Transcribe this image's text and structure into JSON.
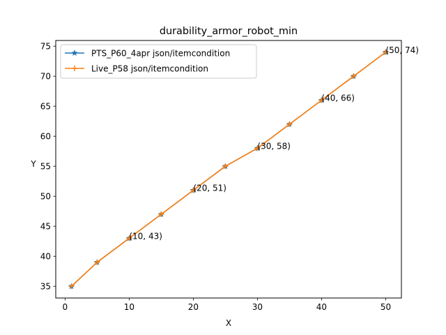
{
  "chart_data": {
    "type": "line",
    "title": "durability_armor_robot_min",
    "xlabel": "X",
    "ylabel": "Y",
    "xlim": [
      -1.45,
      52.45
    ],
    "ylim": [
      33.05,
      75.95
    ],
    "xticks": [
      0,
      10,
      20,
      30,
      40,
      50
    ],
    "yticks": [
      35,
      40,
      45,
      50,
      55,
      60,
      65,
      70,
      75
    ],
    "grid": false,
    "legend_position": "top-left",
    "series": [
      {
        "name": "PTS_P60_4apr json/itemcondition",
        "color": "#1f77b4",
        "marker": "star",
        "x": [
          1,
          5,
          10,
          15,
          20,
          25,
          30,
          35,
          40,
          45,
          50
        ],
        "y": [
          35,
          39,
          43,
          47,
          51,
          55,
          58,
          62,
          66,
          70,
          74
        ]
      },
      {
        "name": "Live_P58 json/itemcondition",
        "color": "#ff7f0e",
        "marker": "plus",
        "x": [
          1,
          5,
          10,
          15,
          20,
          25,
          30,
          35,
          40,
          45,
          50
        ],
        "y": [
          35,
          39,
          43,
          47,
          51,
          55,
          58,
          62,
          66,
          70,
          74
        ]
      }
    ],
    "annotations": [
      {
        "text": "(10, 43)",
        "x": 10,
        "y": 43
      },
      {
        "text": "(20, 51)",
        "x": 20,
        "y": 51
      },
      {
        "text": "(30, 58)",
        "x": 30,
        "y": 58
      },
      {
        "text": "(40, 66)",
        "x": 40,
        "y": 66
      },
      {
        "text": "(50, 74)",
        "x": 50,
        "y": 74
      }
    ]
  }
}
